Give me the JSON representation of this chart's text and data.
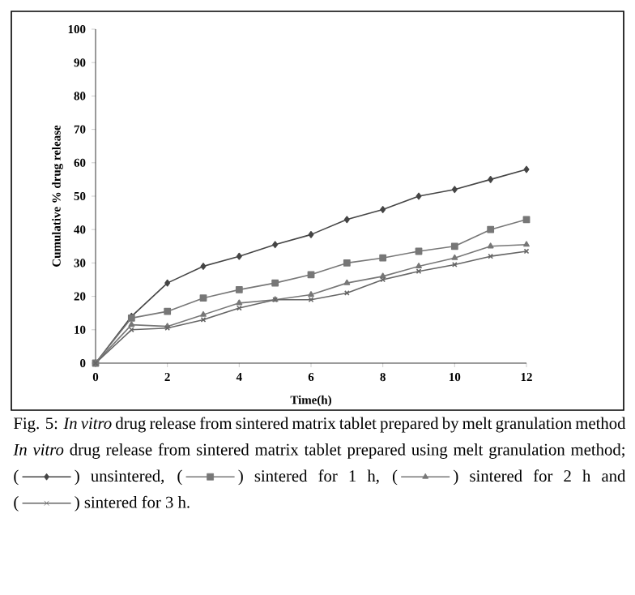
{
  "chart_data": {
    "type": "line",
    "title": "Fig. 5: *In vitro* drug release from sintered matrix tablet prepared by melt granulation method",
    "annotations": [
      "*In vitro* drug release from sintered matrix tablet prepared using melt granulation method;",
      "(",
      ")",
      "and"
    ],
    "legend": "bottom",
    "xlabel": "Time(h)",
    "ylabel": "Cumulative % drug release",
    "x": [
      0,
      1,
      2,
      3,
      4,
      5,
      6,
      7,
      8,
      9,
      10,
      11,
      12
    ],
    "xlim": [
      0,
      12
    ],
    "xticks": [
      0,
      2,
      4,
      6,
      8,
      10,
      12
    ],
    "ylim": [
      0,
      100
    ],
    "yticks": [
      0,
      10,
      20,
      30,
      40,
      50,
      60,
      70,
      80,
      90,
      100
    ],
    "grid": false,
    "line_style": "solid",
    "series": [
      {
        "name": "unsintered,",
        "color": "#454545",
        "marker": "diamond",
        "values": [
          0,
          14,
          24,
          29,
          32,
          35.5,
          38.5,
          43,
          46,
          50,
          52,
          55,
          58
        ]
      },
      {
        "name": "sintered for 1 h,",
        "color": "#777777",
        "marker": "square",
        "values": [
          0,
          13.5,
          15.5,
          19.5,
          22,
          24,
          26.5,
          30,
          31.5,
          33.5,
          35,
          40,
          43
        ]
      },
      {
        "name": "sintered for 2 h",
        "color": "#777777",
        "marker": "triangle",
        "values": [
          0,
          11.5,
          11,
          14.5,
          18,
          19,
          20.5,
          24,
          26,
          29,
          31.5,
          35,
          35.5
        ]
      },
      {
        "name": "sintered for 3 h.",
        "color": "#666666",
        "marker": "cross",
        "values": [
          0,
          10,
          10.5,
          13,
          16.5,
          19,
          19,
          21,
          25,
          27.5,
          29.5,
          32,
          33.5
        ]
      }
    ]
  }
}
